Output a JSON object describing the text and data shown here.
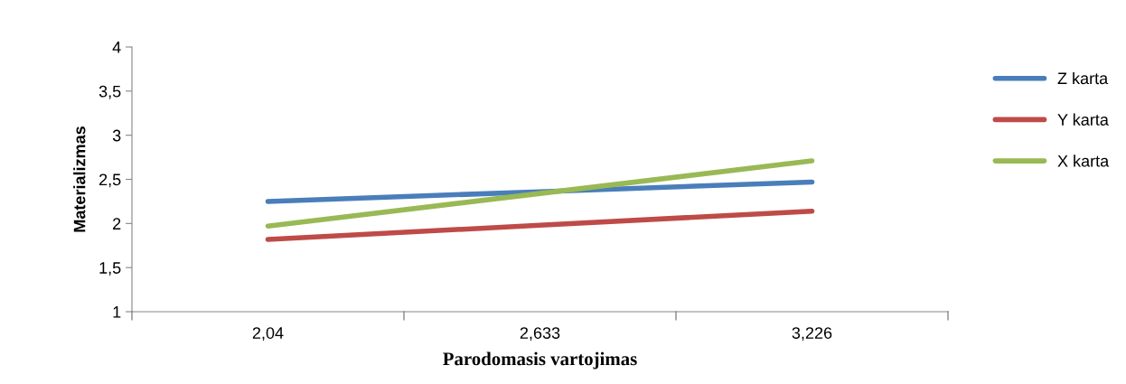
{
  "chart_data": {
    "type": "line",
    "xlabel": "Parodomasis vartojimas",
    "ylabel": "Materializmas",
    "categories": [
      "2,04",
      "2,633",
      "3,226"
    ],
    "series": [
      {
        "name": "Z karta",
        "color": "#4a7ebb",
        "values": [
          2.25,
          2.36,
          2.47
        ]
      },
      {
        "name": "Y karta",
        "color": "#be4b48",
        "values": [
          1.82,
          1.98,
          2.14
        ]
      },
      {
        "name": "X karta",
        "color": "#98b954",
        "values": [
          1.97,
          2.34,
          2.71
        ]
      }
    ],
    "ylim": [
      1,
      4
    ],
    "yticks": [
      1,
      {
        "value": 1.5,
        "label": "1,5"
      },
      2,
      {
        "value": 2.5,
        "label": "2,5"
      },
      3,
      {
        "value": 3.5,
        "label": "3,5"
      },
      4
    ],
    "grid": false,
    "legend": "right",
    "marker": "none",
    "line_style": "solid"
  }
}
